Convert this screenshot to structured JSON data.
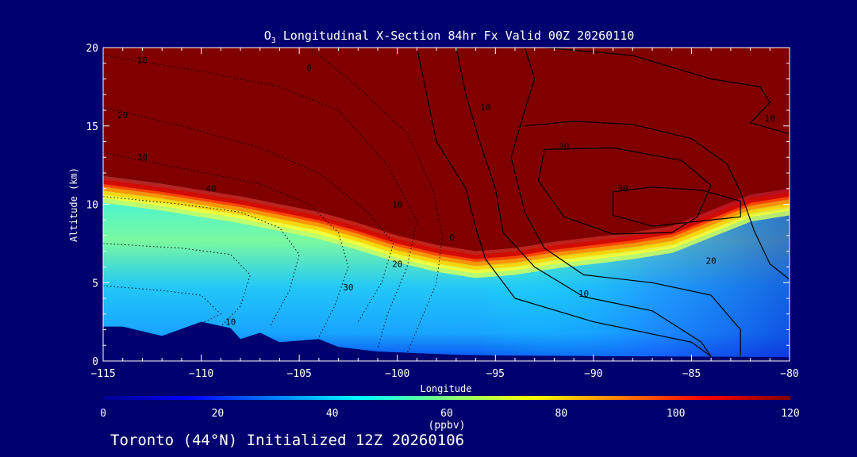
{
  "chart_data": {
    "type": "heatmap",
    "title_main": "O",
    "title_sub": "3",
    "title_rest": " Longitudinal X-Section 84hr  Fx Valid 00Z 20260110",
    "xlabel": "Longitude",
    "ylabel": "Altitude (km)",
    "xlim": [
      -115,
      -80
    ],
    "ylim": [
      0,
      20
    ],
    "x_ticks": [
      -115,
      -110,
      -105,
      -100,
      -95,
      -90,
      -85,
      -80
    ],
    "y_ticks": [
      0,
      5,
      10,
      15,
      20
    ],
    "x_tick_labels": [
      "−115",
      "−110",
      "−105",
      "−100",
      "−95",
      "−90",
      "−85",
      "−80"
    ],
    "y_tick_labels": [
      "0",
      "5",
      "10",
      "15",
      "20"
    ],
    "colorbar": {
      "label": "(ppbv)",
      "range": [
        0,
        120
      ],
      "ticks": [
        0,
        20,
        40,
        60,
        80,
        100,
        120
      ],
      "tick_labels": [
        "0",
        "20",
        "40",
        "60",
        "80",
        "100",
        "120"
      ]
    },
    "tropopause_km": [
      [
        -115,
        11.8
      ],
      [
        -112,
        11.3
      ],
      [
        -110,
        10.9
      ],
      [
        -108,
        10.5
      ],
      [
        -106,
        10.0
      ],
      [
        -104,
        9.5
      ],
      [
        -102,
        8.8
      ],
      [
        -100,
        8.0
      ],
      [
        -98,
        7.4
      ],
      [
        -96,
        7.0
      ],
      [
        -94,
        7.2
      ],
      [
        -92,
        7.6
      ],
      [
        -90,
        7.9
      ],
      [
        -88,
        8.2
      ],
      [
        -86,
        8.6
      ],
      [
        -84,
        9.6
      ],
      [
        -82,
        10.6
      ],
      [
        -80,
        11.0
      ]
    ],
    "terrain_km": [
      [
        -115,
        2.2
      ],
      [
        -114,
        2.2
      ],
      [
        -112,
        1.6
      ],
      [
        -110,
        2.5
      ],
      [
        -108.5,
        2.1
      ],
      [
        -108,
        1.4
      ],
      [
        -107,
        1.8
      ],
      [
        -106,
        1.2
      ],
      [
        -104,
        1.4
      ],
      [
        -103,
        0.9
      ],
      [
        -101,
        0.6
      ],
      [
        -99,
        0.5
      ],
      [
        -97,
        0.4
      ],
      [
        -95,
        0.35
      ],
      [
        -80,
        0.25
      ]
    ],
    "contour_labels": [
      {
        "x": -113,
        "y": 19.0,
        "text": "10"
      },
      {
        "x": -114,
        "y": 15.5,
        "text": "20"
      },
      {
        "x": -113,
        "y": 12.8,
        "text": "30"
      },
      {
        "x": -109.5,
        "y": 10.8,
        "text": "40"
      },
      {
        "x": -104.5,
        "y": 18.5,
        "text": "0"
      },
      {
        "x": -100,
        "y": 9.8,
        "text": "10"
      },
      {
        "x": -100,
        "y": 6.0,
        "text": "20"
      },
      {
        "x": -102.5,
        "y": 4.5,
        "text": "30"
      },
      {
        "x": -108.5,
        "y": 2.3,
        "text": "10"
      },
      {
        "x": -97.2,
        "y": 7.7,
        "text": "0"
      },
      {
        "x": -95.5,
        "y": 16.0,
        "text": "10"
      },
      {
        "x": -91.5,
        "y": 13.5,
        "text": "20"
      },
      {
        "x": -88.5,
        "y": 10.8,
        "text": "30"
      },
      {
        "x": -84,
        "y": 6.2,
        "text": "20"
      },
      {
        "x": -90.5,
        "y": 4.1,
        "text": "10"
      },
      {
        "x": -81,
        "y": 15.3,
        "text": "10"
      }
    ]
  },
  "footer": {
    "text": "Toronto (44°N) Initialized 12Z 20260106"
  }
}
